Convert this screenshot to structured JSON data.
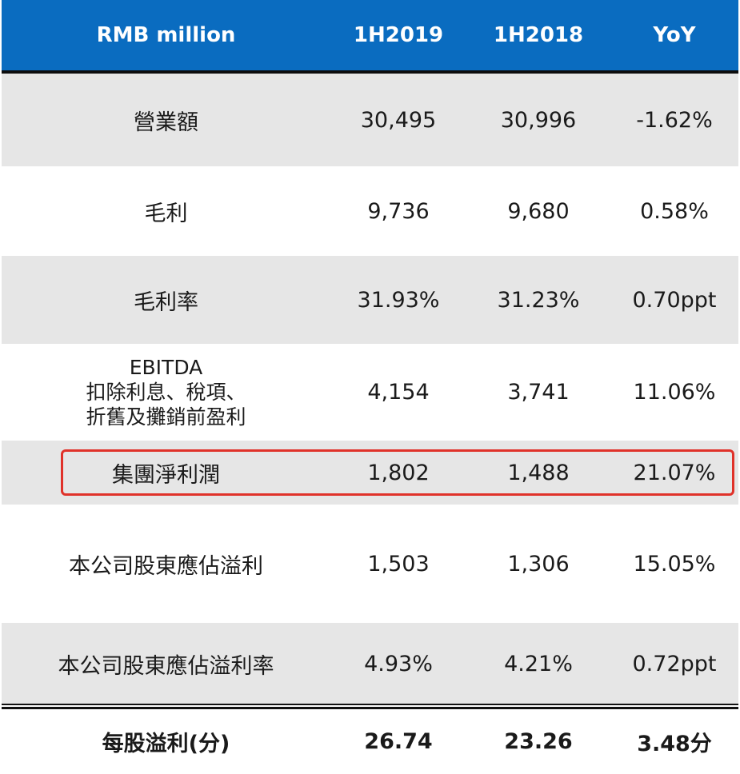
{
  "header": {
    "col_label": "RMB million",
    "col_1h2019": "1H2019",
    "col_1h2018": "1H2018",
    "col_yoy": "YoY"
  },
  "rows": [
    {
      "label": "營業額",
      "v2019": "30,495",
      "v2018": "30,996",
      "yoy": "-1.62%"
    },
    {
      "label": "毛利",
      "v2019": "9,736",
      "v2018": "9,680",
      "yoy": "0.58%"
    },
    {
      "label": "毛利率",
      "v2019": "31.93%",
      "v2018": "31.23%",
      "yoy": "0.70ppt"
    },
    {
      "label_lines": [
        "EBITDA",
        "扣除利息、稅項、",
        "折舊及攤銷前盈利"
      ],
      "v2019": "4,154",
      "v2018": "3,741",
      "yoy": "11.06%"
    },
    {
      "label": "集團淨利潤",
      "v2019": "1,802",
      "v2018": "1,488",
      "yoy": "21.07%"
    },
    {
      "label": "本公司股東應佔溢利",
      "v2019": "1,503",
      "v2018": "1,306",
      "yoy": "15.05%"
    },
    {
      "label": "本公司股東應佔溢利率",
      "v2019": "4.93%",
      "v2018": "4.21%",
      "yoy": "0.72ppt"
    }
  ],
  "summary": {
    "label": "每股溢利(分)",
    "v2019": "26.74",
    "v2018": "23.26",
    "yoy": "3.48分"
  },
  "colors": {
    "header_bg": "#0a6cc0",
    "header_text": "#ffffff",
    "row_shade": "#e6e6e6",
    "highlight_border": "#e0322a"
  }
}
